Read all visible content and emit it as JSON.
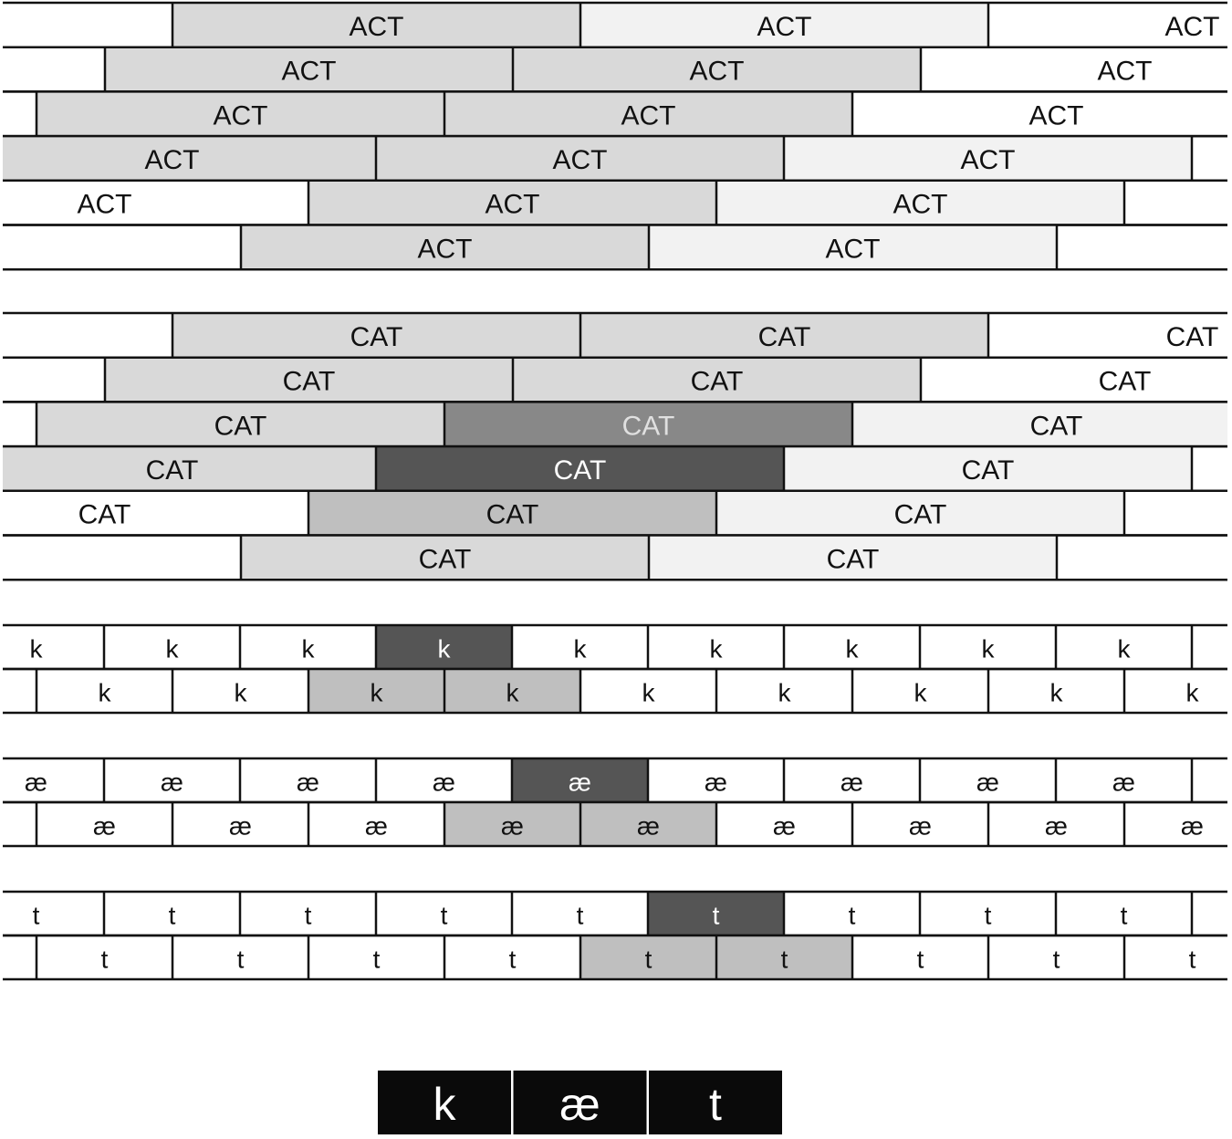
{
  "words": [
    {
      "rows": [
        [
          "ACT",
          "ACT",
          "ACT"
        ],
        [
          "ACT",
          "ACT",
          "ACT"
        ],
        [
          "ACT",
          "ACT",
          "ACT"
        ],
        [
          "ACT",
          "ACT",
          "ACT"
        ],
        [
          "ACT",
          "ACT",
          "ACT"
        ],
        [
          "ACT",
          "ACT"
        ]
      ]
    },
    {
      "rows": [
        [
          "CAT",
          "CAT",
          "CAT"
        ],
        [
          "CAT",
          "CAT",
          "CAT"
        ],
        [
          "CAT",
          "CAT",
          "CAT"
        ],
        [
          "CAT",
          "CAT",
          "CAT"
        ],
        [
          "CAT",
          "CAT",
          "CAT"
        ],
        [
          "CAT",
          "CAT"
        ]
      ]
    }
  ],
  "phonemes": [
    {
      "rows": [
        [
          "k",
          "k",
          "k",
          "k",
          "k",
          "k",
          "k",
          "k",
          "k"
        ],
        [
          "k",
          "k",
          "k",
          "k",
          "k",
          "k",
          "k",
          "k",
          "k"
        ]
      ]
    },
    {
      "rows": [
        [
          "æ",
          "æ",
          "æ",
          "æ",
          "æ",
          "æ",
          "æ",
          "æ",
          "æ"
        ],
        [
          "æ",
          "æ",
          "æ",
          "æ",
          "æ",
          "æ",
          "æ",
          "æ",
          "æ"
        ]
      ]
    },
    {
      "rows": [
        [
          "t",
          "t",
          "t",
          "t",
          "t",
          "t",
          "t",
          "t",
          "t"
        ],
        [
          "t",
          "t",
          "t",
          "t",
          "t",
          "t",
          "t",
          "t",
          "t"
        ]
      ]
    }
  ],
  "input": [
    "k",
    "æ",
    "t"
  ]
}
